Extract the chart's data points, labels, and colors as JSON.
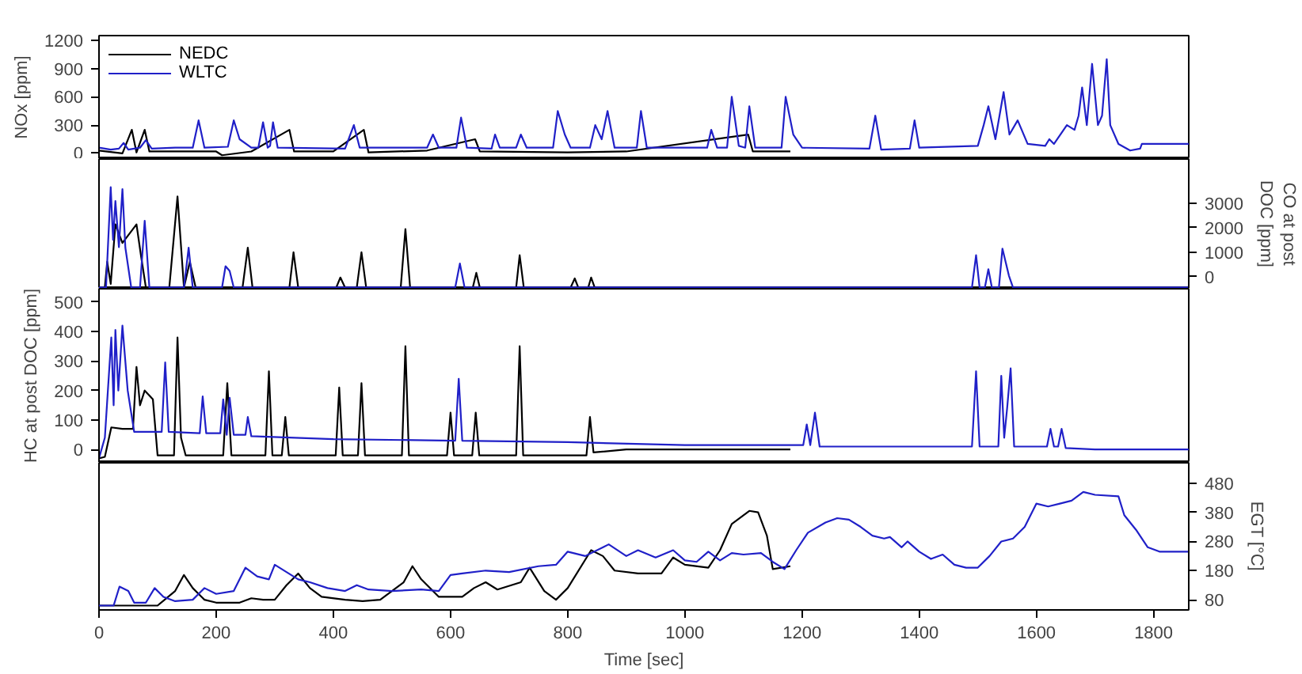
{
  "chart_data": [
    {
      "type": "line",
      "ylabel": "NOx [ppm]",
      "xlim": [
        0,
        1860
      ],
      "ylim": [
        -60,
        1250
      ],
      "yticks": [
        0,
        300,
        600,
        900,
        1200
      ],
      "tick_labels": "y",
      "grid": false,
      "legend": "top left",
      "series": [
        {
          "name": "NEDC",
          "color": "#000000",
          "x": [
            0,
            40,
            56,
            64,
            78,
            86,
            200,
            210,
            260,
            325,
            333,
            400,
            452,
            460,
            560,
            642,
            650,
            800,
            900,
            1108,
            1116,
            1180
          ],
          "values": [
            30,
            0,
            250,
            10,
            250,
            20,
            20,
            -20,
            20,
            250,
            20,
            20,
            250,
            10,
            30,
            150,
            20,
            10,
            20,
            200,
            20,
            20
          ]
        },
        {
          "name": "WLTC",
          "color": "#2020c8",
          "x": [
            0,
            20,
            34,
            42,
            50,
            70,
            80,
            90,
            130,
            160,
            170,
            180,
            220,
            230,
            240,
            260,
            272,
            280,
            288,
            292,
            297,
            305,
            420,
            435,
            445,
            560,
            570,
            580,
            610,
            618,
            628,
            670,
            676,
            684,
            712,
            720,
            730,
            775,
            783,
            795,
            805,
            838,
            847,
            858,
            868,
            880,
            918,
            925,
            935,
            1038,
            1045,
            1055,
            1072,
            1080,
            1092,
            1103,
            1110,
            1120,
            1165,
            1172,
            1185,
            1200,
            1315,
            1325,
            1335,
            1384,
            1392,
            1400,
            1500,
            1510,
            1518,
            1530,
            1544,
            1554,
            1568,
            1585,
            1615,
            1622,
            1630,
            1652,
            1665,
            1672,
            1678,
            1686,
            1695,
            1705,
            1712,
            1720,
            1726,
            1740,
            1760,
            1777,
            1780,
            1860
          ],
          "values": [
            60,
            40,
            50,
            110,
            40,
            60,
            140,
            50,
            60,
            60,
            350,
            60,
            70,
            350,
            150,
            60,
            60,
            330,
            60,
            80,
            330,
            60,
            50,
            300,
            60,
            60,
            200,
            60,
            60,
            380,
            60,
            50,
            200,
            60,
            60,
            200,
            60,
            60,
            450,
            200,
            60,
            60,
            300,
            150,
            450,
            60,
            60,
            450,
            60,
            60,
            250,
            60,
            60,
            600,
            80,
            60,
            500,
            60,
            60,
            600,
            200,
            60,
            50,
            400,
            40,
            50,
            350,
            60,
            80,
            300,
            500,
            150,
            650,
            200,
            350,
            100,
            80,
            150,
            100,
            300,
            250,
            400,
            700,
            300,
            950,
            300,
            400,
            1000,
            300,
            100,
            30,
            50,
            100,
            100
          ]
        }
      ]
    },
    {
      "type": "line",
      "y2label": "CO at post DOC [ppm]",
      "xlim": [
        0,
        1860
      ],
      "y2lim": [
        -500,
        4800
      ],
      "y2ticks": [
        0,
        1000,
        2000,
        3000
      ],
      "tick_labels": "y",
      "grid": false,
      "series": [
        {
          "color": "#000000",
          "axis": "y2",
          "x": [
            0,
            10,
            14,
            20,
            28,
            40,
            64,
            72,
            80,
            120,
            134,
            145,
            155,
            165,
            245,
            254,
            262,
            325,
            332,
            340,
            405,
            412,
            420,
            440,
            448,
            456,
            515,
            523,
            531,
            638,
            644,
            650,
            712,
            718,
            725,
            805,
            812,
            818,
            835,
            840,
            846,
            1180
          ],
          "values": [
            -450,
            -450,
            600,
            -300,
            2130,
            1370,
            2130,
            800,
            -450,
            -450,
            3270,
            -450,
            600,
            -450,
            -450,
            1180,
            -450,
            -450,
            990,
            -450,
            -450,
            -40,
            -450,
            -450,
            990,
            -450,
            -450,
            1940,
            -450,
            -450,
            150,
            -450,
            -450,
            870,
            -450,
            -450,
            -80,
            -450,
            -450,
            -40,
            -450,
            -450
          ]
        },
        {
          "color": "#2020c8",
          "axis": "y2",
          "x": [
            0,
            12,
            20,
            24,
            28,
            34,
            40,
            45,
            55,
            70,
            78,
            86,
            145,
            153,
            160,
            210,
            216,
            223,
            230,
            608,
            616,
            624,
            1490,
            1497,
            1503,
            1512,
            1518,
            1524,
            1536,
            1542,
            1553,
            1560,
            1860
          ],
          "values": [
            -450,
            -450,
            3650,
            1500,
            3080,
            1200,
            3570,
            1180,
            -450,
            -450,
            2280,
            -450,
            -450,
            1180,
            -450,
            -450,
            420,
            230,
            -450,
            -450,
            530,
            -450,
            -450,
            870,
            -450,
            -450,
            300,
            -450,
            -450,
            1140,
            40,
            -450,
            -450
          ]
        }
      ]
    },
    {
      "type": "line",
      "ylabel": "HC at post DOC [ppm]",
      "xlim": [
        0,
        1860
      ],
      "ylim": [
        -45,
        545
      ],
      "yticks": [
        0,
        100,
        200,
        300,
        400,
        500
      ],
      "tick_labels": "y",
      "grid": false,
      "series": [
        {
          "color": "#000000",
          "x": [
            0,
            10,
            21,
            40,
            58,
            64,
            70,
            78,
            92,
            100,
            128,
            134,
            140,
            148,
            212,
            219,
            226,
            284,
            290,
            296,
            312,
            318,
            324,
            404,
            410,
            416,
            442,
            448,
            454,
            517,
            523,
            529,
            594,
            600,
            606,
            637,
            643,
            649,
            712,
            718,
            724,
            832,
            838,
            844,
            900,
            1180
          ],
          "values": [
            -30,
            -25,
            75,
            70,
            70,
            280,
            150,
            200,
            170,
            -20,
            -20,
            380,
            40,
            -20,
            -20,
            225,
            -20,
            -20,
            265,
            -20,
            -20,
            110,
            -20,
            -20,
            210,
            -20,
            -20,
            225,
            -20,
            -20,
            350,
            -20,
            -20,
            125,
            -20,
            -20,
            125,
            -20,
            -20,
            350,
            -20,
            -20,
            110,
            -10,
            0,
            0
          ]
        },
        {
          "color": "#2020c8",
          "x": [
            0,
            10,
            21,
            25,
            28,
            33,
            40,
            49,
            60,
            107,
            113,
            119,
            172,
            177,
            183,
            207,
            212,
            218,
            223,
            230,
            250,
            254,
            260,
            400,
            608,
            614,
            620,
            800,
            1000,
            1202,
            1208,
            1214,
            1222,
            1230,
            1490,
            1497,
            1503,
            1535,
            1540,
            1545,
            1550,
            1556,
            1562,
            1618,
            1624,
            1630,
            1637,
            1643,
            1650,
            1700,
            1860
          ],
          "values": [
            -30,
            40,
            380,
            150,
            405,
            200,
            420,
            200,
            60,
            60,
            295,
            60,
            55,
            180,
            55,
            55,
            170,
            50,
            175,
            50,
            50,
            110,
            45,
            35,
            30,
            240,
            30,
            25,
            15,
            15,
            85,
            15,
            125,
            10,
            10,
            265,
            10,
            10,
            250,
            40,
            140,
            275,
            10,
            10,
            70,
            10,
            10,
            70,
            5,
            0,
            0
          ]
        }
      ]
    },
    {
      "type": "line",
      "xlabel": "Time [sec]",
      "y2label": "EGT [°C]",
      "xlim": [
        0,
        1860
      ],
      "xticks": [
        0,
        200,
        400,
        600,
        800,
        1000,
        1200,
        1400,
        1600,
        1800
      ],
      "y2lim": [
        45,
        550
      ],
      "y2ticks": [
        80,
        180,
        280,
        380,
        480
      ],
      "grid": false,
      "series": [
        {
          "color": "#000000",
          "axis": "y2",
          "x": [
            0,
            100,
            130,
            145,
            160,
            180,
            200,
            240,
            260,
            280,
            300,
            320,
            340,
            360,
            380,
            420,
            450,
            480,
            520,
            535,
            550,
            580,
            620,
            640,
            660,
            680,
            720,
            735,
            760,
            780,
            800,
            840,
            860,
            880,
            920,
            960,
            980,
            1000,
            1040,
            1060,
            1080,
            1110,
            1125,
            1140,
            1150,
            1180
          ],
          "values": [
            60,
            60,
            110,
            165,
            120,
            80,
            70,
            70,
            85,
            80,
            80,
            130,
            170,
            120,
            90,
            80,
            75,
            80,
            140,
            195,
            150,
            90,
            90,
            120,
            140,
            115,
            140,
            190,
            110,
            80,
            120,
            250,
            230,
            180,
            170,
            170,
            225,
            200,
            190,
            250,
            340,
            385,
            380,
            300,
            185,
            195
          ]
        },
        {
          "color": "#2020c8",
          "axis": "y2",
          "x": [
            0,
            25,
            35,
            50,
            60,
            80,
            95,
            110,
            130,
            160,
            180,
            200,
            230,
            250,
            270,
            290,
            300,
            320,
            340,
            360,
            390,
            420,
            440,
            460,
            500,
            550,
            580,
            600,
            620,
            660,
            700,
            750,
            780,
            800,
            830,
            870,
            900,
            920,
            950,
            980,
            1000,
            1020,
            1040,
            1060,
            1080,
            1100,
            1130,
            1150,
            1170,
            1190,
            1210,
            1240,
            1260,
            1280,
            1300,
            1320,
            1340,
            1350,
            1370,
            1380,
            1400,
            1420,
            1440,
            1460,
            1480,
            1500,
            1520,
            1540,
            1560,
            1580,
            1600,
            1620,
            1640,
            1660,
            1680,
            1700,
            1740,
            1750,
            1770,
            1790,
            1810,
            1860
          ],
          "values": [
            60,
            60,
            125,
            110,
            70,
            70,
            120,
            90,
            75,
            80,
            120,
            100,
            110,
            190,
            160,
            150,
            200,
            175,
            150,
            140,
            120,
            110,
            130,
            115,
            110,
            115,
            110,
            165,
            170,
            180,
            175,
            195,
            200,
            245,
            230,
            270,
            230,
            250,
            225,
            250,
            215,
            210,
            245,
            215,
            240,
            235,
            240,
            210,
            185,
            250,
            310,
            345,
            360,
            355,
            330,
            300,
            290,
            295,
            260,
            280,
            245,
            220,
            235,
            200,
            190,
            190,
            230,
            280,
            290,
            330,
            410,
            400,
            410,
            420,
            450,
            440,
            435,
            370,
            320,
            260,
            245,
            245
          ]
        }
      ]
    }
  ]
}
